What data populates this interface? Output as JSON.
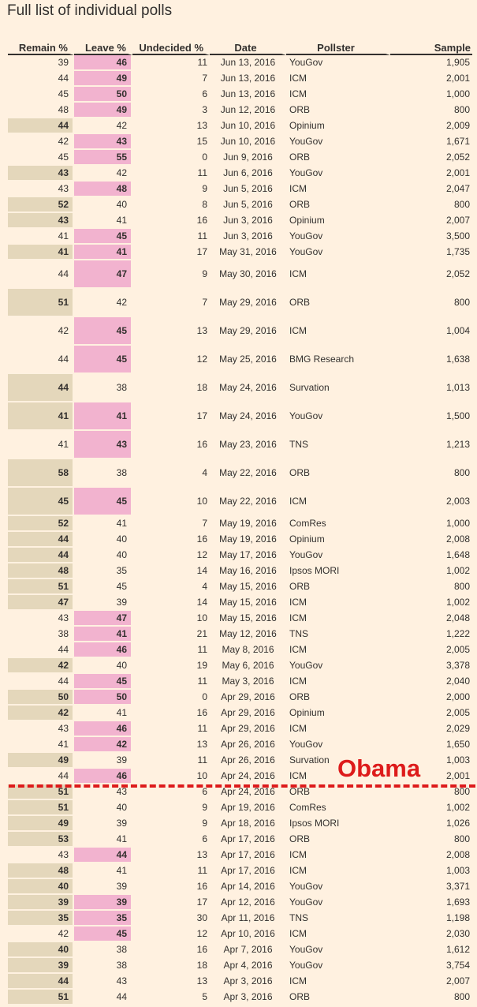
{
  "title": "Full list of individual polls",
  "columns": [
    "Remain %",
    "Leave %",
    "Undecided %",
    "Date",
    "Pollster",
    "Sample"
  ],
  "annotation": "Obama",
  "polls": [
    {
      "remain": "39",
      "leave": "46",
      "undecided": "11",
      "date": "Jun 13, 2016",
      "pollster": "YouGov",
      "sample": "1,905",
      "lead": "leave"
    },
    {
      "remain": "44",
      "leave": "49",
      "undecided": "7",
      "date": "Jun 13, 2016",
      "pollster": "ICM",
      "sample": "2,001",
      "lead": "leave"
    },
    {
      "remain": "45",
      "leave": "50",
      "undecided": "6",
      "date": "Jun 13, 2016",
      "pollster": "ICM",
      "sample": "1,000",
      "lead": "leave"
    },
    {
      "remain": "48",
      "leave": "49",
      "undecided": "3",
      "date": "Jun 12, 2016",
      "pollster": "ORB",
      "sample": "800",
      "lead": "leave"
    },
    {
      "remain": "44",
      "leave": "42",
      "undecided": "13",
      "date": "Jun 10, 2016",
      "pollster": "Opinium",
      "sample": "2,009",
      "lead": "remain"
    },
    {
      "remain": "42",
      "leave": "43",
      "undecided": "15",
      "date": "Jun 10, 2016",
      "pollster": "YouGov",
      "sample": "1,671",
      "lead": "leave"
    },
    {
      "remain": "45",
      "leave": "55",
      "undecided": "0",
      "date": "Jun 9, 2016",
      "pollster": "ORB",
      "sample": "2,052",
      "lead": "leave"
    },
    {
      "remain": "43",
      "leave": "42",
      "undecided": "11",
      "date": "Jun 6, 2016",
      "pollster": "YouGov",
      "sample": "2,001",
      "lead": "remain"
    },
    {
      "remain": "43",
      "leave": "48",
      "undecided": "9",
      "date": "Jun 5, 2016",
      "pollster": "ICM",
      "sample": "2,047",
      "lead": "leave"
    },
    {
      "remain": "52",
      "leave": "40",
      "undecided": "8",
      "date": "Jun 5, 2016",
      "pollster": "ORB",
      "sample": "800",
      "lead": "remain"
    },
    {
      "remain": "43",
      "leave": "41",
      "undecided": "16",
      "date": "Jun 3, 2016",
      "pollster": "Opinium",
      "sample": "2,007",
      "lead": "remain"
    },
    {
      "remain": "41",
      "leave": "45",
      "undecided": "11",
      "date": "Jun 3, 2016",
      "pollster": "YouGov",
      "sample": "3,500",
      "lead": "leave"
    },
    {
      "remain": "41",
      "leave": "41",
      "undecided": "17",
      "date": "May 31, 2016",
      "pollster": "YouGov",
      "sample": "1,735",
      "lead": "tie"
    },
    {
      "remain": "44",
      "leave": "47",
      "undecided": "9",
      "date": "May 30, 2016",
      "pollster": "ICM",
      "sample": "2,052",
      "lead": "leave",
      "tall": true
    },
    {
      "remain": "51",
      "leave": "42",
      "undecided": "7",
      "date": "May 29, 2016",
      "pollster": "ORB",
      "sample": "800",
      "lead": "remain",
      "tall": true
    },
    {
      "remain": "42",
      "leave": "45",
      "undecided": "13",
      "date": "May 29, 2016",
      "pollster": "ICM",
      "sample": "1,004",
      "lead": "leave",
      "tall": true
    },
    {
      "remain": "44",
      "leave": "45",
      "undecided": "12",
      "date": "May 25, 2016",
      "pollster": "BMG Research",
      "sample": "1,638",
      "lead": "leave",
      "tall": true
    },
    {
      "remain": "44",
      "leave": "38",
      "undecided": "18",
      "date": "May 24, 2016",
      "pollster": "Survation",
      "sample": "1,013",
      "lead": "remain",
      "tall": true
    },
    {
      "remain": "41",
      "leave": "41",
      "undecided": "17",
      "date": "May 24, 2016",
      "pollster": "YouGov",
      "sample": "1,500",
      "lead": "tie",
      "tall": true
    },
    {
      "remain": "41",
      "leave": "43",
      "undecided": "16",
      "date": "May 23, 2016",
      "pollster": "TNS",
      "sample": "1,213",
      "lead": "leave",
      "tall": true
    },
    {
      "remain": "58",
      "leave": "38",
      "undecided": "4",
      "date": "May 22, 2016",
      "pollster": "ORB",
      "sample": "800",
      "lead": "remain",
      "tall": true
    },
    {
      "remain": "45",
      "leave": "45",
      "undecided": "10",
      "date": "May 22, 2016",
      "pollster": "ICM",
      "sample": "2,003",
      "lead": "tie",
      "tall": true
    },
    {
      "remain": "52",
      "leave": "41",
      "undecided": "7",
      "date": "May 19, 2016",
      "pollster": "ComRes",
      "sample": "1,000",
      "lead": "remain"
    },
    {
      "remain": "44",
      "leave": "40",
      "undecided": "16",
      "date": "May 19, 2016",
      "pollster": "Opinium",
      "sample": "2,008",
      "lead": "remain"
    },
    {
      "remain": "44",
      "leave": "40",
      "undecided": "12",
      "date": "May 17, 2016",
      "pollster": "YouGov",
      "sample": "1,648",
      "lead": "remain"
    },
    {
      "remain": "48",
      "leave": "35",
      "undecided": "14",
      "date": "May 16, 2016",
      "pollster": "Ipsos MORI",
      "sample": "1,002",
      "lead": "remain"
    },
    {
      "remain": "51",
      "leave": "45",
      "undecided": "4",
      "date": "May 15, 2016",
      "pollster": "ORB",
      "sample": "800",
      "lead": "remain"
    },
    {
      "remain": "47",
      "leave": "39",
      "undecided": "14",
      "date": "May 15, 2016",
      "pollster": "ICM",
      "sample": "1,002",
      "lead": "remain"
    },
    {
      "remain": "43",
      "leave": "47",
      "undecided": "10",
      "date": "May 15, 2016",
      "pollster": "ICM",
      "sample": "2,048",
      "lead": "leave"
    },
    {
      "remain": "38",
      "leave": "41",
      "undecided": "21",
      "date": "May 12, 2016",
      "pollster": "TNS",
      "sample": "1,222",
      "lead": "leave"
    },
    {
      "remain": "44",
      "leave": "46",
      "undecided": "11",
      "date": "May 8, 2016",
      "pollster": "ICM",
      "sample": "2,005",
      "lead": "leave"
    },
    {
      "remain": "42",
      "leave": "40",
      "undecided": "19",
      "date": "May 6, 2016",
      "pollster": "YouGov",
      "sample": "3,378",
      "lead": "remain"
    },
    {
      "remain": "44",
      "leave": "45",
      "undecided": "11",
      "date": "May 3, 2016",
      "pollster": "ICM",
      "sample": "2,040",
      "lead": "leave"
    },
    {
      "remain": "50",
      "leave": "50",
      "undecided": "0",
      "date": "Apr 29, 2016",
      "pollster": "ORB",
      "sample": "2,000",
      "lead": "tie"
    },
    {
      "remain": "42",
      "leave": "41",
      "undecided": "16",
      "date": "Apr 29, 2016",
      "pollster": "Opinium",
      "sample": "2,005",
      "lead": "remain"
    },
    {
      "remain": "43",
      "leave": "46",
      "undecided": "11",
      "date": "Apr 29, 2016",
      "pollster": "ICM",
      "sample": "2,029",
      "lead": "leave"
    },
    {
      "remain": "41",
      "leave": "42",
      "undecided": "13",
      "date": "Apr 26, 2016",
      "pollster": "YouGov",
      "sample": "1,650",
      "lead": "leave"
    },
    {
      "remain": "49",
      "leave": "39",
      "undecided": "11",
      "date": "Apr 26, 2016",
      "pollster": "Survation",
      "sample": "1,003",
      "lead": "remain"
    },
    {
      "remain": "44",
      "leave": "46",
      "undecided": "10",
      "date": "Apr 24, 2016",
      "pollster": "ICM",
      "sample": "2,001",
      "lead": "leave"
    },
    {
      "remain": "51",
      "leave": "43",
      "undecided": "6",
      "date": "Apr 24, 2016",
      "pollster": "ORB",
      "sample": "800",
      "lead": "remain"
    },
    {
      "remain": "51",
      "leave": "40",
      "undecided": "9",
      "date": "Apr 19, 2016",
      "pollster": "ComRes",
      "sample": "1,002",
      "lead": "remain"
    },
    {
      "remain": "49",
      "leave": "39",
      "undecided": "9",
      "date": "Apr 18, 2016",
      "pollster": "Ipsos MORI",
      "sample": "1,026",
      "lead": "remain"
    },
    {
      "remain": "53",
      "leave": "41",
      "undecided": "6",
      "date": "Apr 17, 2016",
      "pollster": "ORB",
      "sample": "800",
      "lead": "remain"
    },
    {
      "remain": "43",
      "leave": "44",
      "undecided": "13",
      "date": "Apr 17, 2016",
      "pollster": "ICM",
      "sample": "2,008",
      "lead": "leave"
    },
    {
      "remain": "48",
      "leave": "41",
      "undecided": "11",
      "date": "Apr 17, 2016",
      "pollster": "ICM",
      "sample": "1,003",
      "lead": "remain"
    },
    {
      "remain": "40",
      "leave": "39",
      "undecided": "16",
      "date": "Apr 14, 2016",
      "pollster": "YouGov",
      "sample": "3,371",
      "lead": "remain"
    },
    {
      "remain": "39",
      "leave": "39",
      "undecided": "17",
      "date": "Apr 12, 2016",
      "pollster": "YouGov",
      "sample": "1,693",
      "lead": "tie"
    },
    {
      "remain": "35",
      "leave": "35",
      "undecided": "30",
      "date": "Apr 11, 2016",
      "pollster": "TNS",
      "sample": "1,198",
      "lead": "tie"
    },
    {
      "remain": "42",
      "leave": "45",
      "undecided": "12",
      "date": "Apr 10, 2016",
      "pollster": "ICM",
      "sample": "2,030",
      "lead": "leave"
    },
    {
      "remain": "40",
      "leave": "38",
      "undecided": "16",
      "date": "Apr 7, 2016",
      "pollster": "YouGov",
      "sample": "1,612",
      "lead": "remain"
    },
    {
      "remain": "39",
      "leave": "38",
      "undecided": "18",
      "date": "Apr 4, 2016",
      "pollster": "YouGov",
      "sample": "3,754",
      "lead": "remain"
    },
    {
      "remain": "44",
      "leave": "43",
      "undecided": "13",
      "date": "Apr 3, 2016",
      "pollster": "ICM",
      "sample": "2,007",
      "lead": "remain"
    },
    {
      "remain": "51",
      "leave": "44",
      "undecided": "5",
      "date": "Apr 3, 2016",
      "pollster": "ORB",
      "sample": "800",
      "lead": "remain"
    }
  ]
}
